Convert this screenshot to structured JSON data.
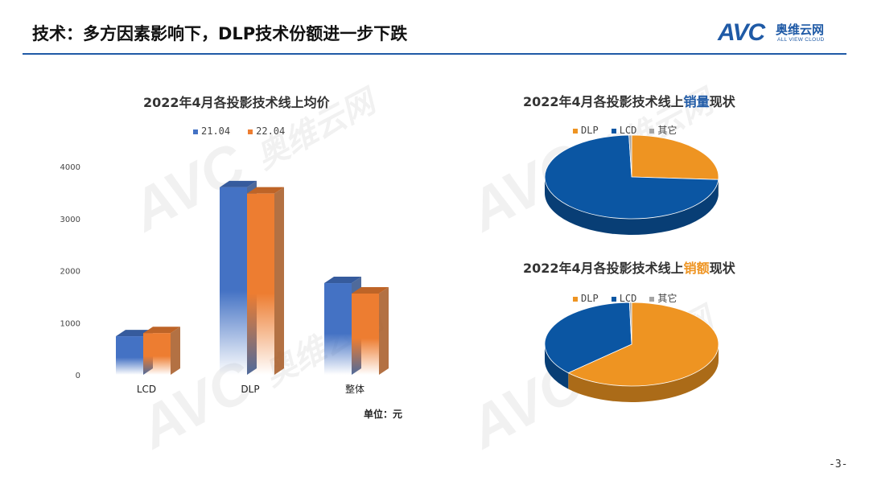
{
  "header": {
    "title": "技术：多方因素影响下，DLP技术份额进一步下跌"
  },
  "logo": {
    "brand": "AVC",
    "cn": "奥维云网",
    "en": "ALL VIEW CLOUD"
  },
  "watermark": {
    "brand": "AVC",
    "cn": "奥维云网",
    "en": "ALL VIEW CLOUD"
  },
  "footer": {
    "page": "-3-"
  },
  "unit_label": "单位：元",
  "colors": {
    "blue": "#4472c4",
    "orange": "#ed7d31",
    "pie_blue": "#0b56a3",
    "pie_orange": "#ee9422",
    "gray": "#a5a5a5",
    "accent": "#1f5aa6"
  },
  "chart_data": [
    {
      "type": "bar",
      "title": "2022年4月各投影技术线上均价",
      "categories": [
        "LCD",
        "DLP",
        "整体"
      ],
      "series": [
        {
          "name": "21.04",
          "values": [
            740,
            3600,
            1760
          ]
        },
        {
          "name": "22.04",
          "values": [
            800,
            3480,
            1560
          ]
        }
      ],
      "ylim": [
        0,
        4000
      ],
      "yticks": [
        "0",
        "1000",
        "2000",
        "3000",
        "4000"
      ],
      "xlabel": "",
      "ylabel": "",
      "legend": "top"
    },
    {
      "type": "pie",
      "title_prefix": "2022年4月各投影技术线上",
      "title_highlight": "销量",
      "title_suffix": "现状",
      "labels": [
        "DLP",
        "LCD",
        "其它"
      ],
      "values": [
        26,
        73.5,
        0.5
      ],
      "legend": "top"
    },
    {
      "type": "pie",
      "title_prefix": "2022年4月各投影技术线上",
      "title_highlight": "销额",
      "title_suffix": "现状",
      "labels": [
        "DLP",
        "LCD",
        "其它"
      ],
      "values": [
        63,
        36.6,
        0.4
      ],
      "legend": "top"
    }
  ]
}
